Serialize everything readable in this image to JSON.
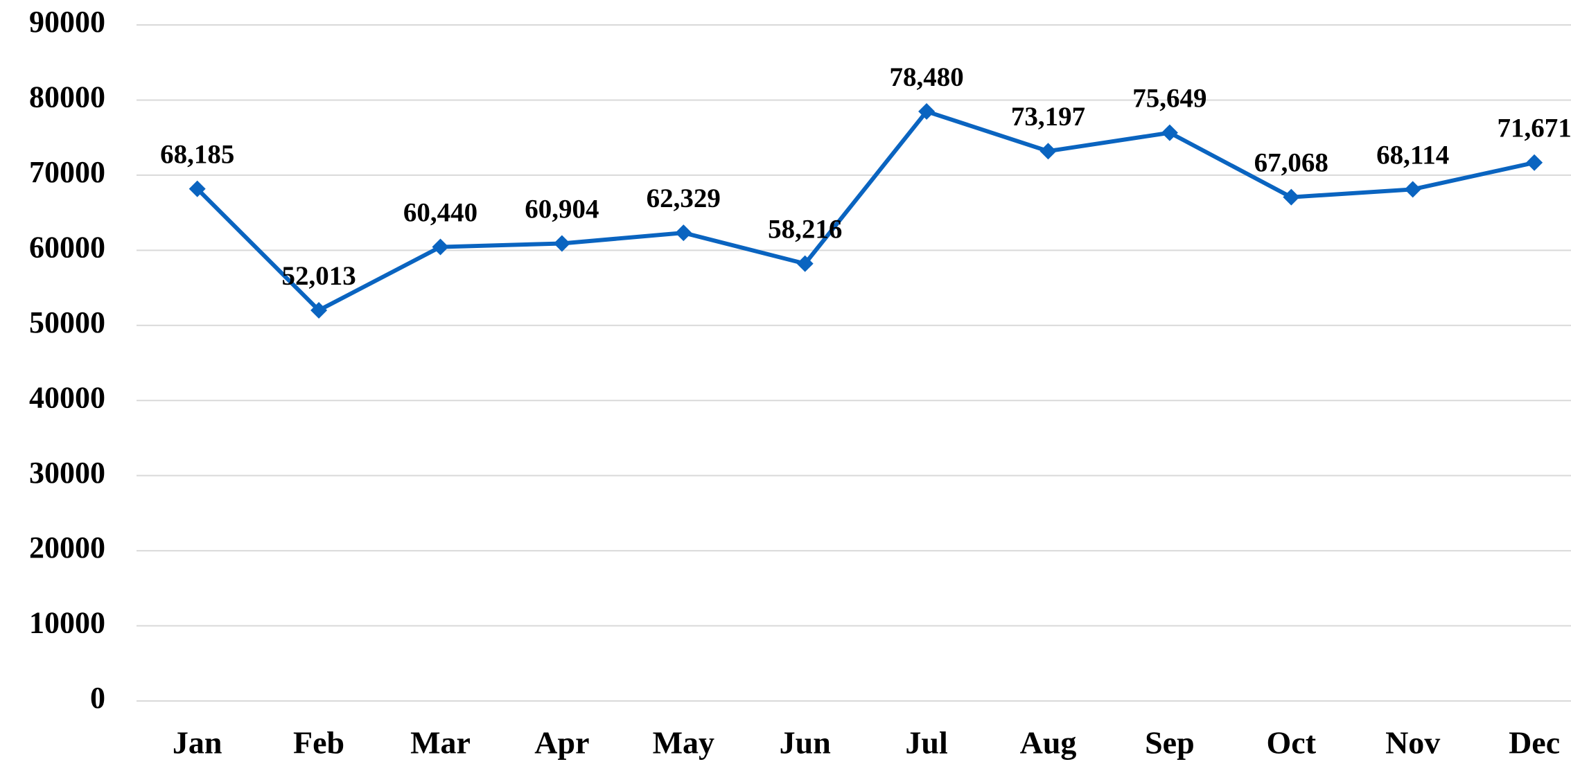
{
  "chart_data": {
    "type": "line",
    "categories": [
      "Jan",
      "Feb",
      "Mar",
      "Apr",
      "May",
      "Jun",
      "Jul",
      "Aug",
      "Sep",
      "Oct",
      "Nov",
      "Dec"
    ],
    "values": [
      68185,
      52013,
      60440,
      60904,
      62329,
      58216,
      78480,
      73197,
      75649,
      67068,
      68114,
      71671
    ],
    "value_labels": [
      "68,185",
      "52,013",
      "60,440",
      "60,904",
      "62,329",
      "58,216",
      "78,480",
      "73,197",
      "75,649",
      "67,068",
      "68,114",
      "71,671"
    ],
    "color": "#0a64c0",
    "ylim": [
      0,
      90000
    ],
    "yticks": [
      0,
      10000,
      20000,
      30000,
      40000,
      50000,
      60000,
      70000,
      80000,
      90000
    ],
    "grid": true
  }
}
